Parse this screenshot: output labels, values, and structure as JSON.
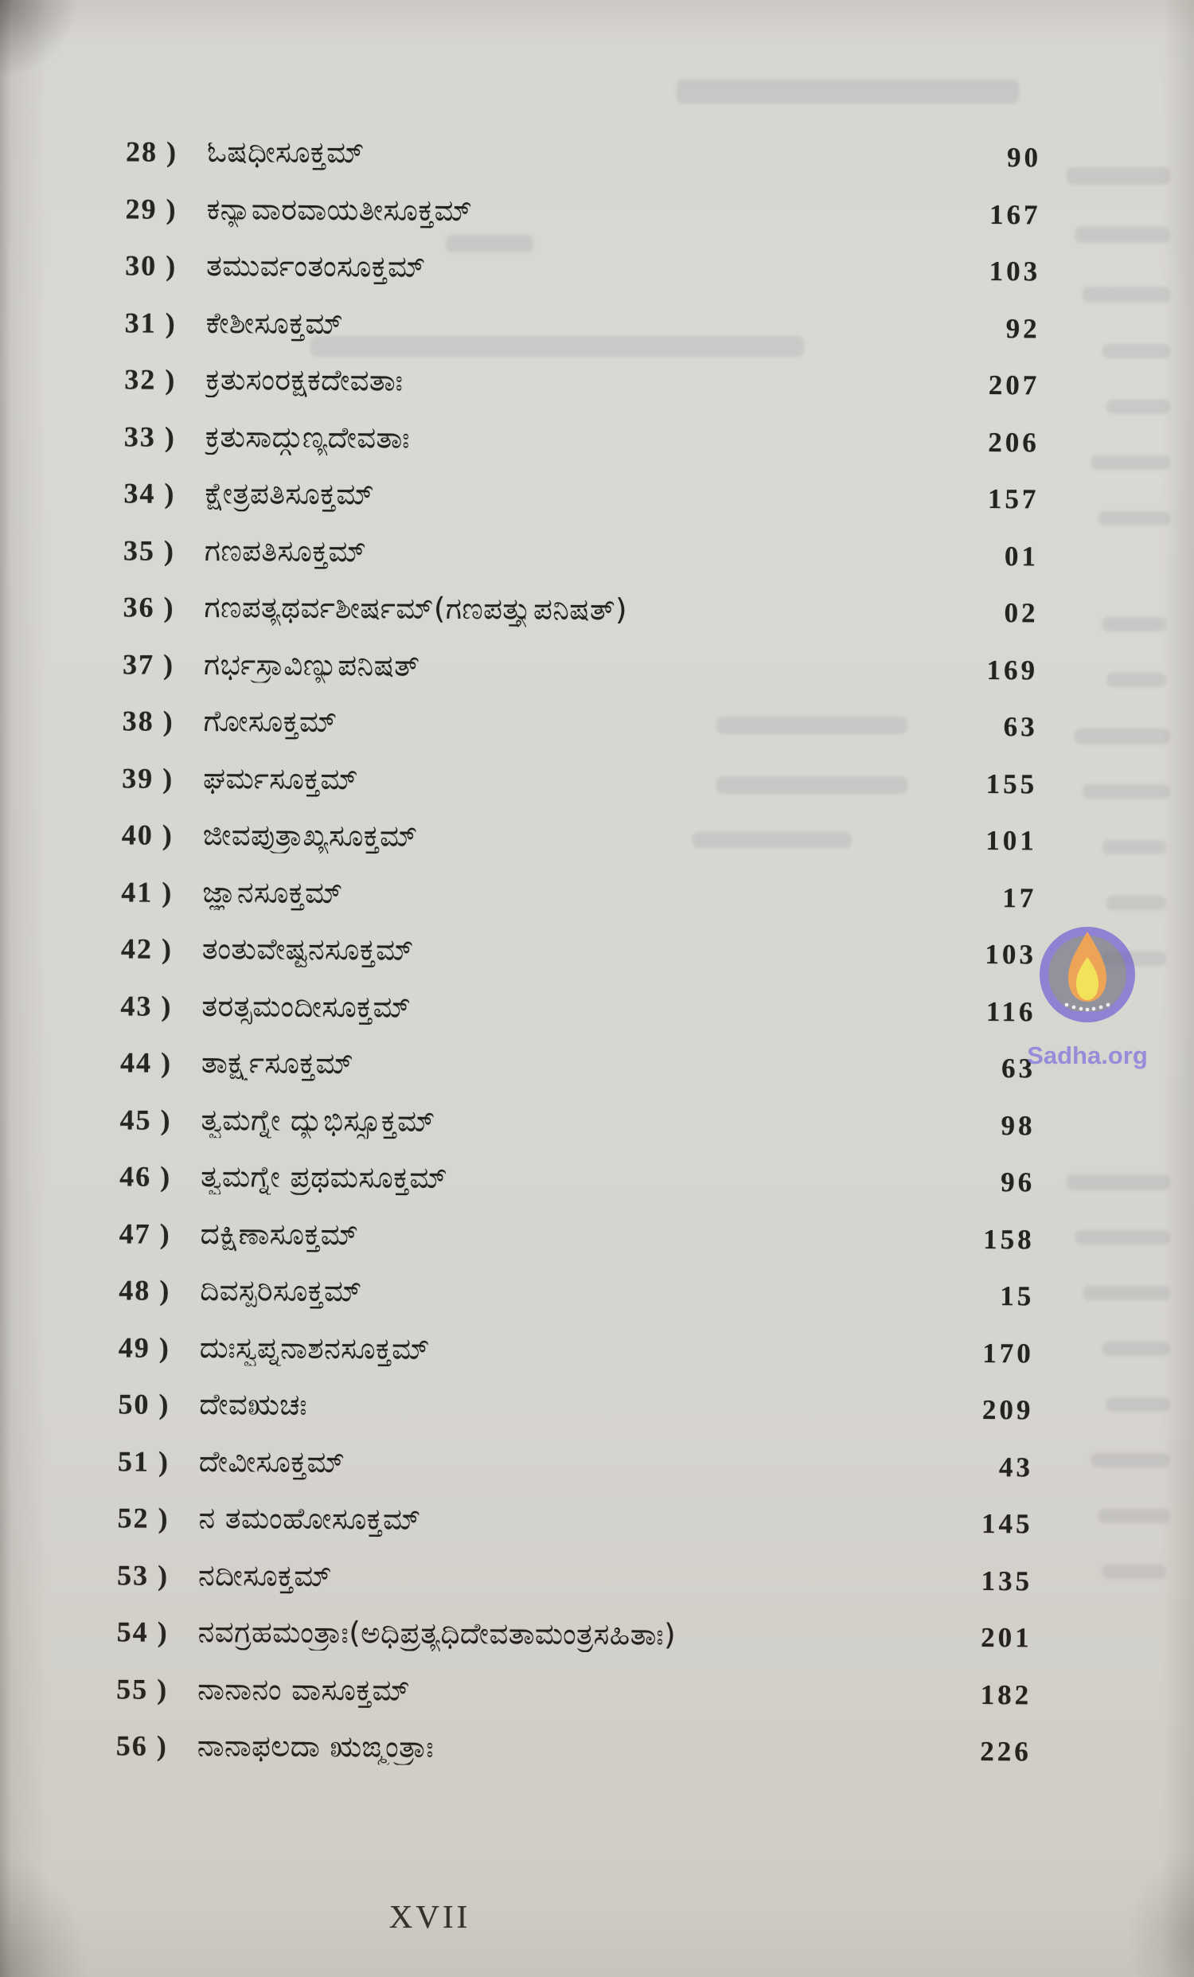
{
  "page": {
    "footer_page_number": "XVII"
  },
  "toc": {
    "entries": [
      {
        "no": "28 )",
        "title": "ಓಷಧೀಸೂಕ್ತಮ್",
        "page": "90"
      },
      {
        "no": "29 )",
        "title": "ಕನ್ಯಾವಾರವಾಯತೀಸೂಕ್ತಮ್",
        "page": "167"
      },
      {
        "no": "30 )",
        "title": "ತಮುರ್ವಂತಂಸೂಕ್ತಮ್",
        "page": "103"
      },
      {
        "no": "31 )",
        "title": "ಕೇಶೀಸೂಕ್ತಮ್",
        "page": "92"
      },
      {
        "no": "32 )",
        "title": "ಕ್ರತುಸಂರಕ್ಷಕದೇವತಾಃ",
        "page": "207"
      },
      {
        "no": "33 )",
        "title": "ಕ್ರತುಸಾದ್ಗುಣ್ಯದೇವತಾಃ",
        "page": "206"
      },
      {
        "no": "34 )",
        "title": "ಕ್ಷೇತ್ರಪತಿಸೂಕ್ತಮ್",
        "page": "157"
      },
      {
        "no": "35 )",
        "title": "ಗಣಪತಿಸೂಕ್ತಮ್",
        "page": "01"
      },
      {
        "no": "36 )",
        "title": "ಗಣಪತ್ಯಥರ್ವಶೀರ್ಷಮ್(ಗಣಪತ್ತ್ಯುಪನಿಷತ್)",
        "page": "02"
      },
      {
        "no": "37 )",
        "title": "ಗರ್ಭಸ್ರಾವಿಣ್ಯುಪನಿಷತ್",
        "page": "169"
      },
      {
        "no": "38 )",
        "title": "ಗೋಸೂಕ್ತಮ್",
        "page": "63"
      },
      {
        "no": "39 )",
        "title": "ಘರ್ಮಸೂಕ್ತಮ್",
        "page": "155"
      },
      {
        "no": "40 )",
        "title": "ಜೀವಪುತ್ರಾಖ್ಯಸೂಕ್ತಮ್",
        "page": "101"
      },
      {
        "no": "41 )",
        "title": "ಜ್ಞಾನಸೂಕ್ತಮ್",
        "page": "17"
      },
      {
        "no": "42 )",
        "title": "ತಂತುವೇಷ್ಟನಸೂಕ್ತಮ್",
        "page": "103"
      },
      {
        "no": "43 )",
        "title": "ತರತ್ಸಮಂದೀಸೂಕ್ತಮ್",
        "page": "116"
      },
      {
        "no": "44 )",
        "title": "ತಾರ್ಕ್ಷ್ಯಸೂಕ್ತಮ್",
        "page": "63"
      },
      {
        "no": "45 )",
        "title": "ತ್ವಮಗ್ನೇ ದ್ಯುಭಿಸ್ಸೂಕ್ತಮ್",
        "page": "98"
      },
      {
        "no": "46 )",
        "title": "ತ್ವಮಗ್ನೇ ಪ್ರಥಮಸೂಕ್ತಮ್",
        "page": "96"
      },
      {
        "no": "47 )",
        "title": "ದಕ್ಷಿಣಾಸೂಕ್ತಮ್",
        "page": "158"
      },
      {
        "no": "48 )",
        "title": "ದಿವಸ್ಪರಿಸೂಕ್ತಮ್",
        "page": "15"
      },
      {
        "no": "49 )",
        "title": "ದುಃಸ್ವಪ್ನನಾಶನಸೂಕ್ತಮ್",
        "page": "170"
      },
      {
        "no": "50 )",
        "title": "ದೇವಋಚಃ",
        "page": "209"
      },
      {
        "no": "51 )",
        "title": "ದೇವೀಸೂಕ್ತಮ್",
        "page": "43"
      },
      {
        "no": "52 )",
        "title": "ನ ತಮಂಹೋಸೂಕ್ತಮ್",
        "page": "145"
      },
      {
        "no": "53 )",
        "title": "ನದೀಸೂಕ್ತಮ್",
        "page": "135"
      },
      {
        "no": "54 )",
        "title": "ನವಗ್ರಹಮಂತ್ರಾಃ(ಅಧಿಪ್ರತ್ಯಧಿದೇವತಾಮಂತ್ರಸಹಿತಾಃ)",
        "page": "201"
      },
      {
        "no": "55 )",
        "title": "ನಾನಾನಂ ವಾಸೂಕ್ತಮ್",
        "page": "182"
      },
      {
        "no": "56 )",
        "title": "ನಾನಾಫಲದಾ ಋಙ್ಮಂತ್ರಾಃ",
        "page": "226"
      }
    ]
  },
  "watermark": {
    "site_label": "Sadha.org",
    "logo": "diya-flame-icon",
    "circle_color": "#8b7cd3",
    "inner_color": "#8d8d99",
    "flame_outer_color": "#f0a14d",
    "flame_inner_color": "#f5e352",
    "text_color": "#9188da"
  }
}
